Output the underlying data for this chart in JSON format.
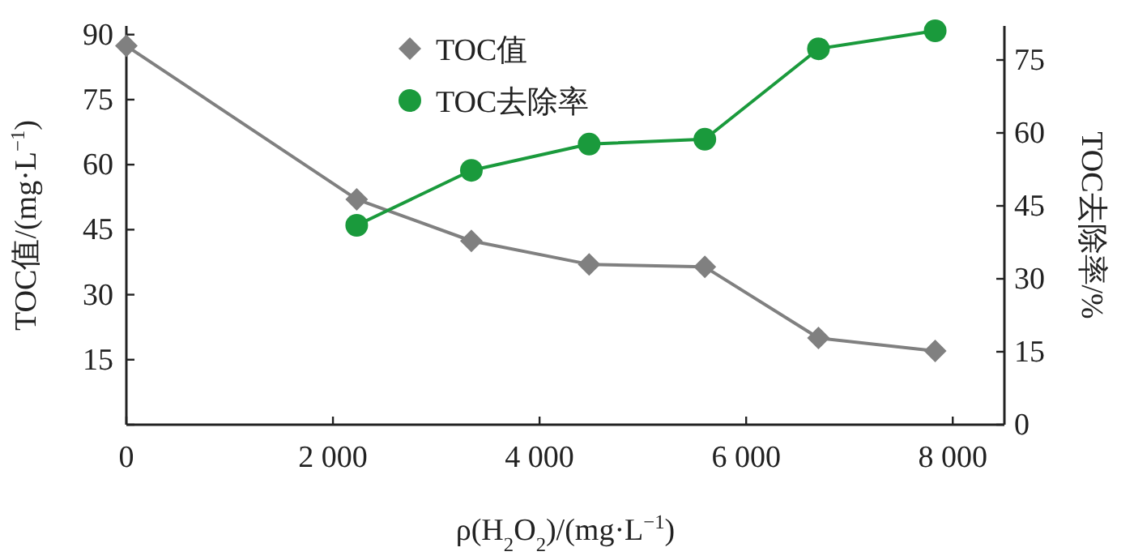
{
  "chart_data": {
    "type": "line",
    "x": [
      0,
      2230,
      3340,
      4480,
      5600,
      6700,
      7830
    ],
    "series": [
      {
        "name": "TOC值",
        "color": "#808080",
        "marker": "diamond",
        "values": [
          87.4,
          52,
          42.4,
          37,
          36.4,
          20,
          17
        ]
      },
      {
        "name": "TOC去除率",
        "color": "#1a9a3c",
        "marker": "circle",
        "axis": "y2",
        "values": [
          null,
          41,
          52.3,
          57.7,
          58.7,
          77.3,
          81
        ]
      }
    ],
    "xlabel": "ρ(H$_{2}$O$_{2}$)/(mg·L$^{−1}$)",
    "ylabel": "TOC值/(mg·L$^{−1}$)",
    "y2label": "TOC去除率/%",
    "xlim": [
      0,
      8500
    ],
    "xticks": [
      0,
      {
        "value": 2000,
        "label": "2 000"
      },
      {
        "value": 4000,
        "label": "4 000"
      },
      {
        "value": 6000,
        "label": "6 000"
      },
      {
        "value": 8000,
        "label": "8 000"
      }
    ],
    "ylim": [
      0,
      92
    ],
    "yticks": [
      {
        "value": 0,
        "label": null
      },
      15,
      30,
      45,
      60,
      75,
      90
    ],
    "y2lim": [
      0,
      82
    ],
    "y2ticks": [
      0,
      15,
      30,
      45,
      60,
      75
    ],
    "line_style": "solid",
    "grid": false,
    "legend": "top"
  }
}
